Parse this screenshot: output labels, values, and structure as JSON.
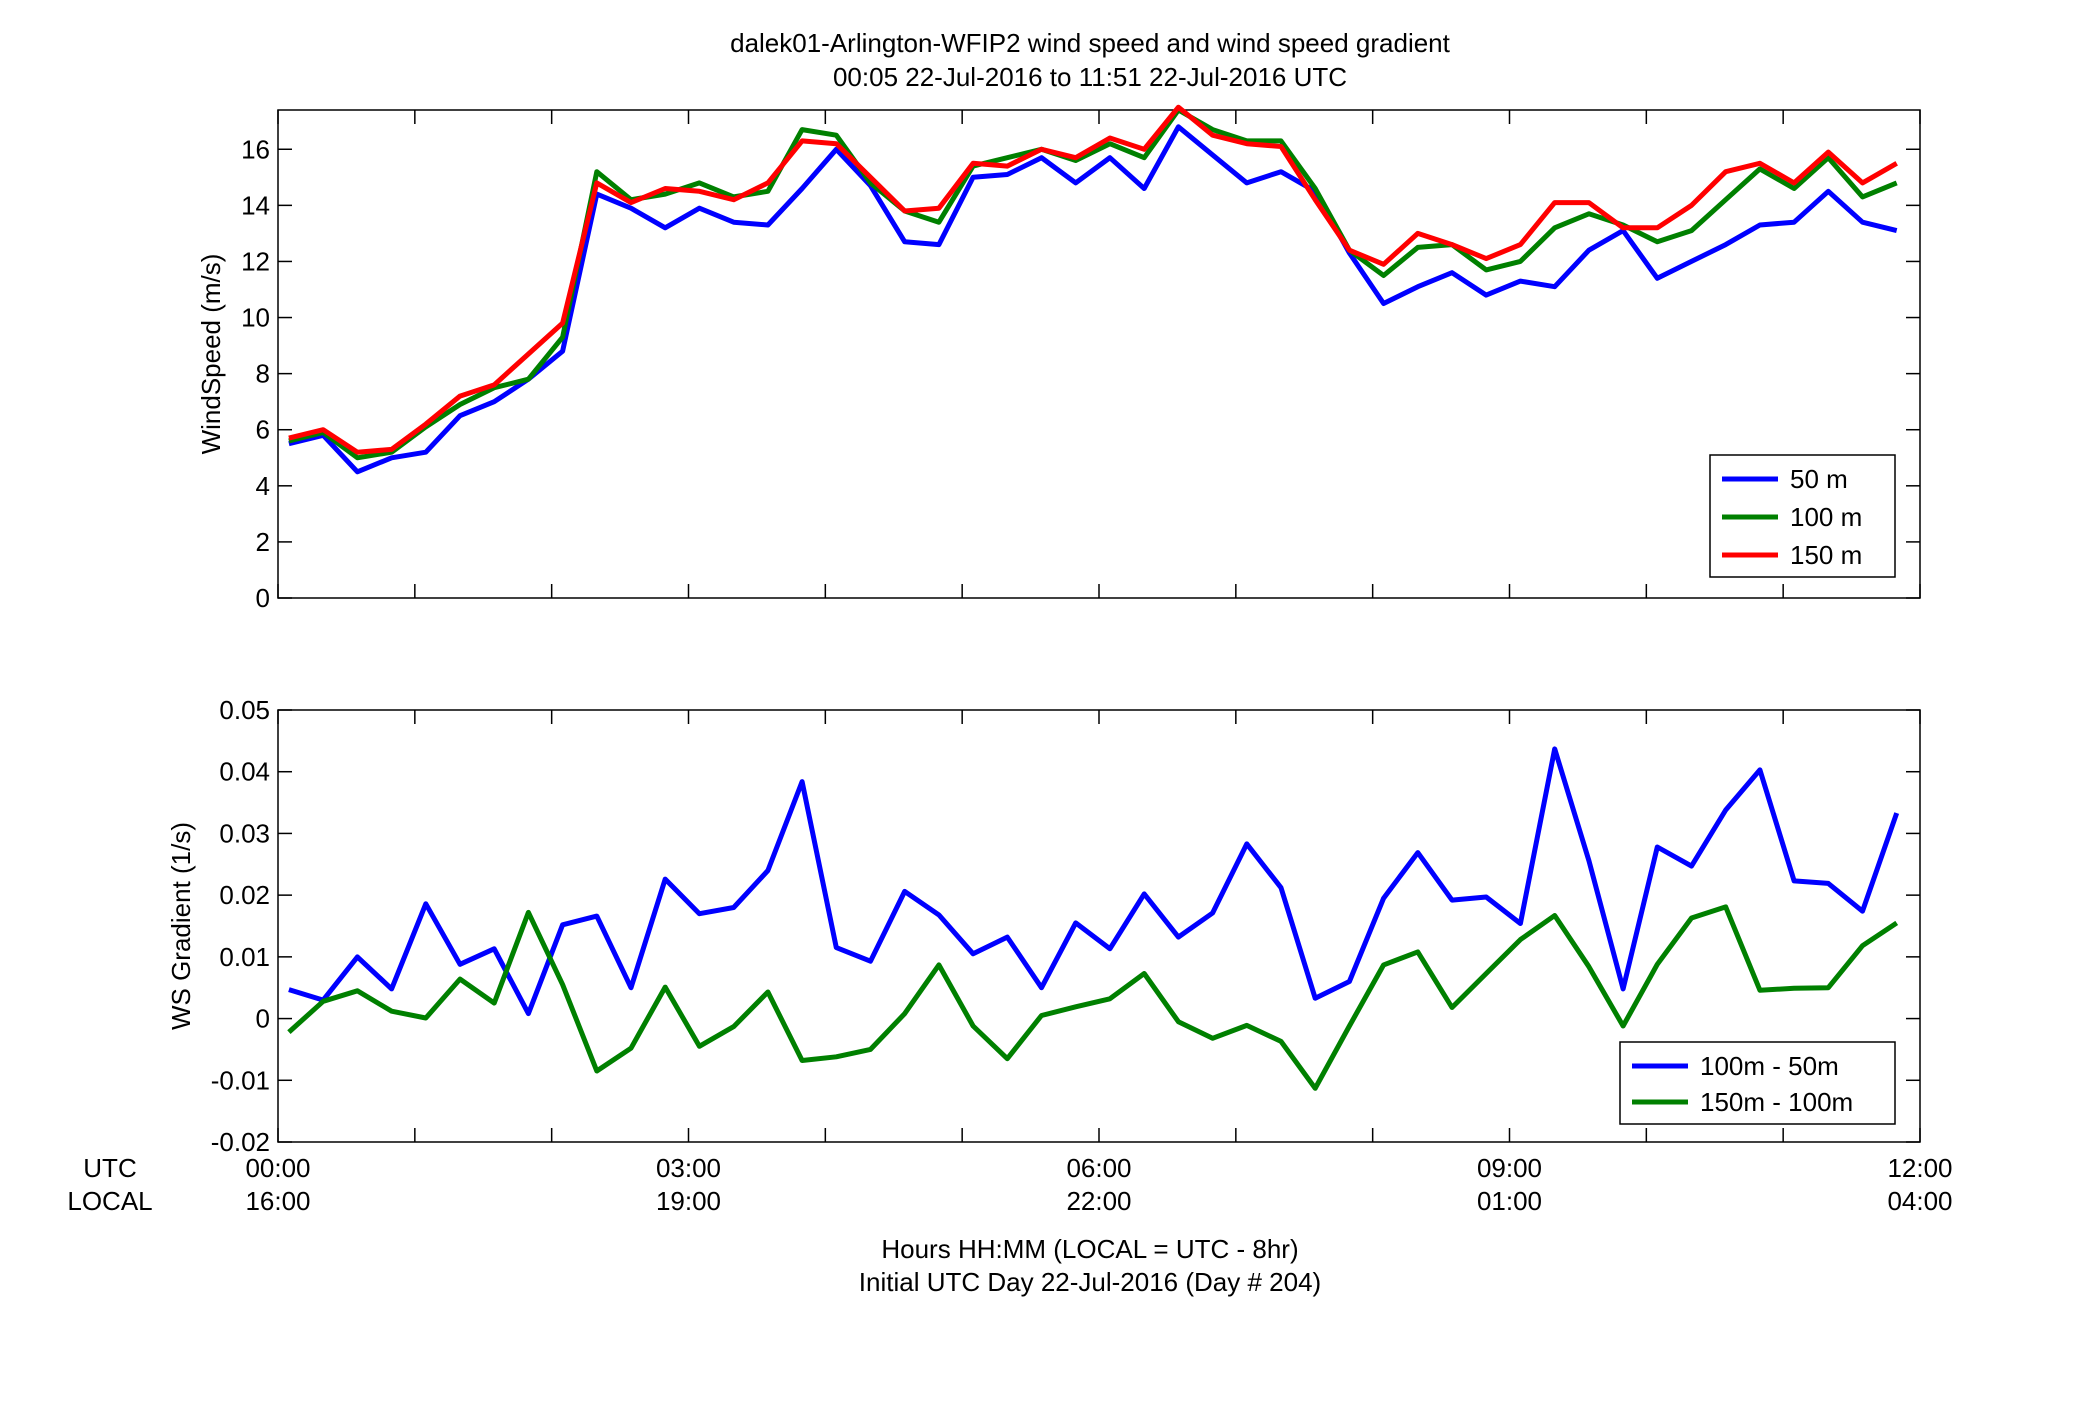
{
  "figure": {
    "title_line1": "dalek01-Arlington-WFIP2  wind speed and wind speed gradient",
    "title_line2": "00:05 22-Jul-2016 to 11:51 22-Jul-2016  UTC",
    "xlabel_line1": "Hours HH:MM  (LOCAL = UTC - 8hr)",
    "xlabel_line2": "Initial UTC Day 22-Jul-2016 (Day # 204)",
    "row_label_utc": "UTC",
    "row_label_local": "LOCAL"
  },
  "chart_data": [
    {
      "type": "line",
      "title": "",
      "xlabel": "",
      "ylabel": "WindSpeed (m/s)",
      "xlim": [
        0,
        12
      ],
      "ylim": [
        0,
        17.4
      ],
      "yticks": [
        0,
        2,
        4,
        6,
        8,
        10,
        12,
        14,
        16
      ],
      "ytick_labels": [
        "0",
        "2",
        "4",
        "6",
        "8",
        "10",
        "12",
        "14",
        "16"
      ],
      "grid": false,
      "legend_position": "bottom-right",
      "x_hours": [
        0.08,
        0.33,
        0.58,
        0.83,
        1.08,
        1.33,
        1.58,
        1.83,
        2.08,
        2.33,
        2.58,
        2.83,
        3.08,
        3.33,
        3.58,
        3.83,
        4.08,
        4.33,
        4.58,
        4.83,
        5.08,
        5.33,
        5.58,
        5.83,
        6.08,
        6.33,
        6.58,
        6.83,
        7.08,
        7.33,
        7.58,
        7.83,
        8.08,
        8.33,
        8.58,
        8.83,
        9.08,
        9.33,
        9.58,
        9.83,
        10.08,
        10.33,
        10.58,
        10.83,
        11.08,
        11.33,
        11.58,
        11.83
      ],
      "series": [
        {
          "name": "50 m",
          "color": "#0000ff",
          "values": [
            5.5,
            5.8,
            4.5,
            5.0,
            5.2,
            6.5,
            7.0,
            7.8,
            8.8,
            14.4,
            13.9,
            13.2,
            13.9,
            13.4,
            13.3,
            14.6,
            16.0,
            14.7,
            12.7,
            12.6,
            15.0,
            15.1,
            15.7,
            14.8,
            15.7,
            14.6,
            16.8,
            15.8,
            14.8,
            15.2,
            14.5,
            12.3,
            10.5,
            11.1,
            11.6,
            10.8,
            11.3,
            11.1,
            12.4,
            13.1,
            11.4,
            12.0,
            12.6,
            13.3,
            13.4,
            14.5,
            13.4,
            13.1
          ]
        },
        {
          "name": "100 m",
          "color": "#008000",
          "values": [
            5.6,
            5.9,
            5.0,
            5.2,
            6.1,
            6.9,
            7.5,
            7.8,
            9.3,
            15.2,
            14.2,
            14.4,
            14.8,
            14.3,
            14.5,
            16.7,
            16.5,
            14.8,
            13.8,
            13.4,
            15.4,
            15.7,
            16.0,
            15.6,
            16.2,
            15.7,
            17.4,
            16.7,
            16.3,
            16.3,
            14.6,
            12.4,
            11.5,
            12.5,
            12.6,
            11.7,
            12.0,
            13.2,
            13.7,
            13.3,
            12.7,
            13.1,
            14.2,
            15.3,
            14.6,
            15.7,
            14.3,
            14.8
          ]
        },
        {
          "name": "150 m",
          "color": "#ff0000",
          "values": [
            5.7,
            6.0,
            5.2,
            5.3,
            6.2,
            7.2,
            7.6,
            8.7,
            9.8,
            14.8,
            14.1,
            14.6,
            14.5,
            14.2,
            14.8,
            16.3,
            16.2,
            15.0,
            13.8,
            13.9,
            15.5,
            15.4,
            16.0,
            15.7,
            16.4,
            16.0,
            17.5,
            16.5,
            16.2,
            16.1,
            14.2,
            12.4,
            11.9,
            13.0,
            12.6,
            12.1,
            12.6,
            14.1,
            14.1,
            13.2,
            13.2,
            14.0,
            15.2,
            15.5,
            14.8,
            15.9,
            14.8,
            15.5
          ]
        }
      ]
    },
    {
      "type": "line",
      "title": "",
      "xlabel": "",
      "ylabel": "WS Gradient (1/s)",
      "xlim": [
        0,
        12
      ],
      "ylim": [
        -0.02,
        0.05
      ],
      "yticks": [
        -0.02,
        -0.01,
        0,
        0.01,
        0.02,
        0.03,
        0.04,
        0.05
      ],
      "ytick_labels": [
        "-0.02",
        "-0.01",
        "0",
        "0.01",
        "0.02",
        "0.03",
        "0.04",
        "0.05"
      ],
      "grid": false,
      "legend_position": "bottom-right",
      "x_hours": [
        0.08,
        0.33,
        0.58,
        0.83,
        1.08,
        1.33,
        1.58,
        1.83,
        2.08,
        2.33,
        2.58,
        2.83,
        3.08,
        3.33,
        3.58,
        3.83,
        4.08,
        4.33,
        4.58,
        4.83,
        5.08,
        5.33,
        5.58,
        5.83,
        6.08,
        6.33,
        6.58,
        6.83,
        7.08,
        7.33,
        7.58,
        7.83,
        8.08,
        8.33,
        8.58,
        8.83,
        9.08,
        9.33,
        9.58,
        9.83,
        10.08,
        10.33,
        10.58,
        10.83,
        11.08,
        11.33,
        11.58,
        11.83
      ],
      "series": [
        {
          "name": "100m - 50m",
          "color": "#0000ff",
          "values": [
            0.0047,
            0.003,
            0.01,
            0.0048,
            0.0186,
            0.0088,
            0.0113,
            0.0008,
            0.0152,
            0.0166,
            0.005,
            0.0226,
            0.017,
            0.018,
            0.024,
            0.0384,
            0.0115,
            0.0093,
            0.0206,
            0.0168,
            0.0105,
            0.0132,
            0.005,
            0.0155,
            0.0113,
            0.0202,
            0.0132,
            0.0171,
            0.0283,
            0.0212,
            0.0033,
            0.006,
            0.0195,
            0.0269,
            0.0192,
            0.0197,
            0.0154,
            0.0437,
            0.0256,
            0.0048,
            0.0278,
            0.0247,
            0.0338,
            0.0403,
            0.0223,
            0.0219,
            0.0174,
            0.0333
          ]
        },
        {
          "name": "150m - 100m",
          "color": "#008000",
          "values": [
            -0.0022,
            0.0028,
            0.0045,
            0.0012,
            0.0001,
            0.0064,
            0.0025,
            0.0172,
            0.0055,
            -0.0085,
            -0.0048,
            0.0051,
            -0.0045,
            -0.0013,
            0.0043,
            -0.0068,
            -0.0062,
            -0.005,
            0.0008,
            0.0087,
            -0.0012,
            -0.0065,
            0.0005,
            0.0019,
            0.0032,
            0.0073,
            -0.0005,
            -0.0032,
            -0.0011,
            -0.0037,
            -0.0113,
            -0.0012,
            0.0087,
            0.0108,
            0.0018,
            0.0073,
            0.0128,
            0.0167,
            0.0084,
            -0.0012,
            0.0088,
            0.0163,
            0.0181,
            0.0046,
            0.0049,
            0.005,
            0.0118,
            0.0155
          ]
        }
      ]
    }
  ],
  "x_axis": {
    "tick_hours": [
      0,
      3,
      6,
      9,
      12
    ],
    "utc_labels": [
      "00:00",
      "03:00",
      "06:00",
      "09:00",
      "12:00"
    ],
    "local_labels": [
      "16:00",
      "19:00",
      "22:00",
      "01:00",
      "04:00"
    ]
  }
}
